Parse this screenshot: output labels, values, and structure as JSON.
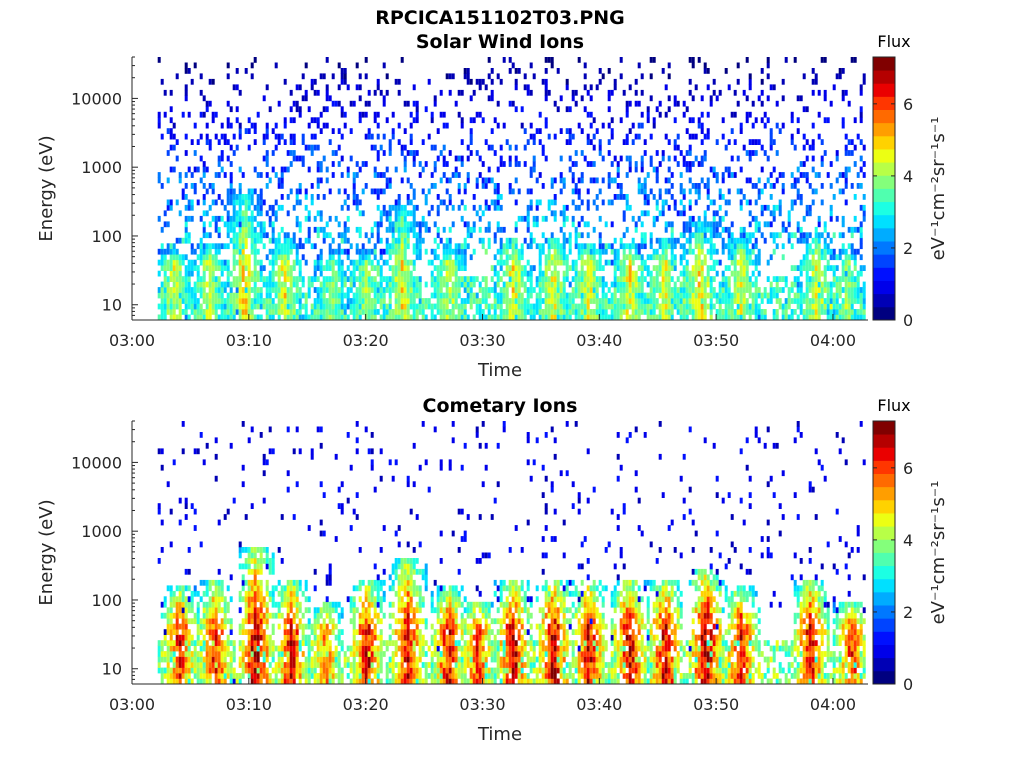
{
  "figure": {
    "title": "RPCICA151102T03.PNG"
  },
  "palette": [
    "#000080",
    "#0000b5",
    "#0000ea",
    "#0010ff",
    "#0044ff",
    "#0078ff",
    "#00acff",
    "#00e0ff",
    "#1cffe3",
    "#50ffaf",
    "#84ff7b",
    "#b8ff47",
    "#ecff13",
    "#ffd200",
    "#ff9e00",
    "#ff6a00",
    "#ff3600",
    "#ea0000",
    "#b50000",
    "#800000"
  ],
  "chart_data": [
    {
      "type": "heatmap",
      "title": "Solar Wind Ions",
      "xlabel": "Time",
      "ylabel": "Energy (eV)",
      "xlim": [
        "03:00",
        "04:03"
      ],
      "ylim": [
        6,
        40000
      ],
      "yscale": "log",
      "xticks": [
        "03:00",
        "03:10",
        "03:20",
        "03:30",
        "03:40",
        "03:50",
        "04:00"
      ],
      "yticks": [
        {
          "value": 10,
          "label": "10"
        },
        {
          "value": 100,
          "label": "100"
        },
        {
          "value": 1000,
          "label": "1000"
        },
        {
          "value": 10000,
          "label": "10000"
        }
      ],
      "colorbar": {
        "title": "Flux",
        "label": "eV⁻¹cm⁻²sr⁻¹s⁻¹",
        "range": [
          0,
          7.3
        ],
        "ticks": [
          "0",
          "2",
          "4",
          "6"
        ],
        "tick_values": [
          0,
          2,
          4,
          6
        ]
      },
      "bursts": [
        {
          "t": 3.5,
          "value": 4.3,
          "top_energy": 60
        },
        {
          "t": 6.5,
          "value": 4.3,
          "top_energy": 80
        },
        {
          "t": 9.5,
          "value": 4.8,
          "top_energy": 400
        },
        {
          "t": 13,
          "value": 4.5,
          "top_energy": 100
        },
        {
          "t": 17,
          "value": 3.8,
          "top_energy": 60
        },
        {
          "t": 20,
          "value": 4.0,
          "top_energy": 60
        },
        {
          "t": 23,
          "value": 4.6,
          "top_energy": 300
        },
        {
          "t": 27,
          "value": 4.3,
          "top_energy": 80
        },
        {
          "t": 32.5,
          "value": 4.6,
          "top_energy": 100
        },
        {
          "t": 36,
          "value": 4.6,
          "top_energy": 100
        },
        {
          "t": 39,
          "value": 4.5,
          "top_energy": 80
        },
        {
          "t": 42.5,
          "value": 4.6,
          "top_energy": 80
        },
        {
          "t": 45.5,
          "value": 4.5,
          "top_energy": 100
        },
        {
          "t": 48.5,
          "value": 4.8,
          "top_energy": 150
        },
        {
          "t": 52,
          "value": 4.4,
          "top_energy": 100
        },
        {
          "t": 58.5,
          "value": 4.5,
          "top_energy": 120
        },
        {
          "t": 61,
          "value": 4.1,
          "top_energy": 60
        }
      ],
      "background": {
        "density": 0.55,
        "value": 2.8
      }
    },
    {
      "type": "heatmap",
      "title": "Cometary Ions",
      "xlabel": "Time",
      "ylabel": "Energy (eV)",
      "xlim": [
        "03:00",
        "04:03"
      ],
      "ylim": [
        6,
        40000
      ],
      "yscale": "log",
      "xticks": [
        "03:00",
        "03:10",
        "03:20",
        "03:30",
        "03:40",
        "03:50",
        "04:00"
      ],
      "yticks": [
        {
          "value": 10,
          "label": "10"
        },
        {
          "value": 100,
          "label": "100"
        },
        {
          "value": 1000,
          "label": "1000"
        },
        {
          "value": 10000,
          "label": "10000"
        }
      ],
      "colorbar": {
        "title": "Flux",
        "label": "eV⁻¹cm⁻²sr⁻¹s⁻¹",
        "range": [
          0,
          7.3
        ],
        "ticks": [
          "0",
          "2",
          "4",
          "6"
        ],
        "tick_values": [
          0,
          2,
          4,
          6
        ]
      },
      "bursts": [
        {
          "t": 4,
          "value": 6.3,
          "top_energy": 150
        },
        {
          "t": 7,
          "value": 6.2,
          "top_energy": 200
        },
        {
          "t": 10.5,
          "value": 6.8,
          "top_energy": 600
        },
        {
          "t": 13.5,
          "value": 6.4,
          "top_energy": 200
        },
        {
          "t": 16.5,
          "value": 5.5,
          "top_energy": 100
        },
        {
          "t": 20,
          "value": 6.4,
          "top_energy": 200
        },
        {
          "t": 23.5,
          "value": 6.5,
          "top_energy": 400
        },
        {
          "t": 27,
          "value": 6.3,
          "top_energy": 150
        },
        {
          "t": 29.5,
          "value": 6.0,
          "top_energy": 100
        },
        {
          "t": 32.5,
          "value": 6.6,
          "top_energy": 200
        },
        {
          "t": 36,
          "value": 6.6,
          "top_energy": 200
        },
        {
          "t": 39,
          "value": 6.5,
          "top_energy": 200
        },
        {
          "t": 42.5,
          "value": 6.6,
          "top_energy": 200
        },
        {
          "t": 45.5,
          "value": 6.6,
          "top_energy": 200
        },
        {
          "t": 49,
          "value": 6.9,
          "top_energy": 300
        },
        {
          "t": 52,
          "value": 6.3,
          "top_energy": 150
        },
        {
          "t": 58,
          "value": 6.5,
          "top_energy": 200
        },
        {
          "t": 61.5,
          "value": 6.0,
          "top_energy": 100
        }
      ],
      "background": {
        "density": 0.08,
        "value": 1.2
      }
    }
  ]
}
